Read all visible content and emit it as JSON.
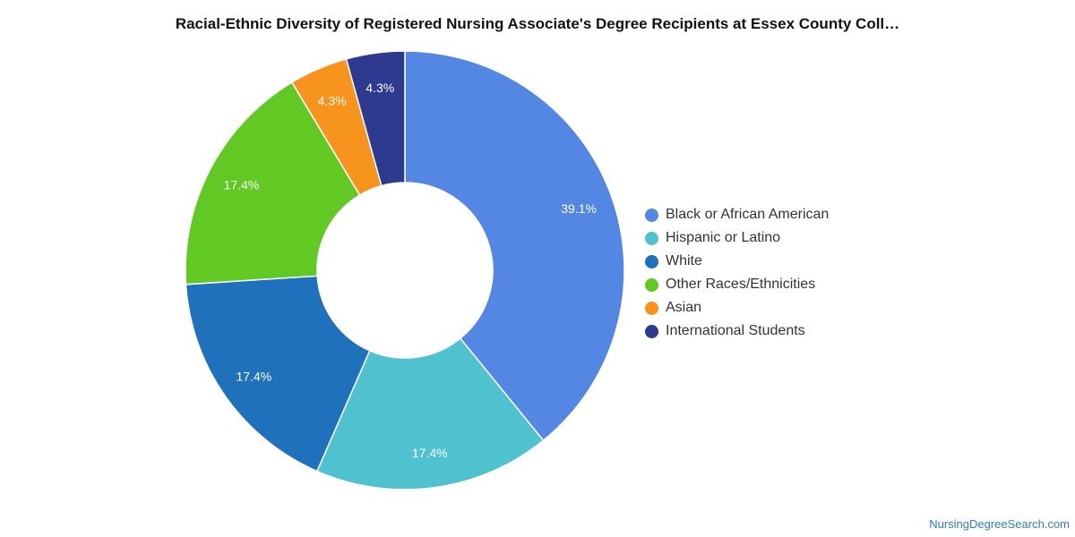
{
  "chart_data": {
    "type": "pie",
    "title": "Racial-Ethnic Diversity of Registered Nursing Associate's Degree Recipients at Essex County Coll…",
    "legend_position": "right",
    "slices": [
      {
        "name": "Black or African American",
        "value": 39.1,
        "label": "39.1%",
        "color": "#5486e3"
      },
      {
        "name": "Hispanic or Latino",
        "value": 17.4,
        "label": "17.4%",
        "color": "#4fc1cf"
      },
      {
        "name": "White",
        "value": 17.4,
        "label": "17.4%",
        "color": "#1f71bb"
      },
      {
        "name": "Other Races/Ethnicities",
        "value": 17.4,
        "label": "17.4%",
        "color": "#62c924"
      },
      {
        "name": "Asian",
        "value": 4.3,
        "label": "4.3%",
        "color": "#f7941e"
      },
      {
        "name": "International Students",
        "value": 4.3,
        "label": "4.3%",
        "color": "#2e3a8f"
      }
    ]
  },
  "footer": {
    "source": "NursingDegreeSearch.com"
  }
}
